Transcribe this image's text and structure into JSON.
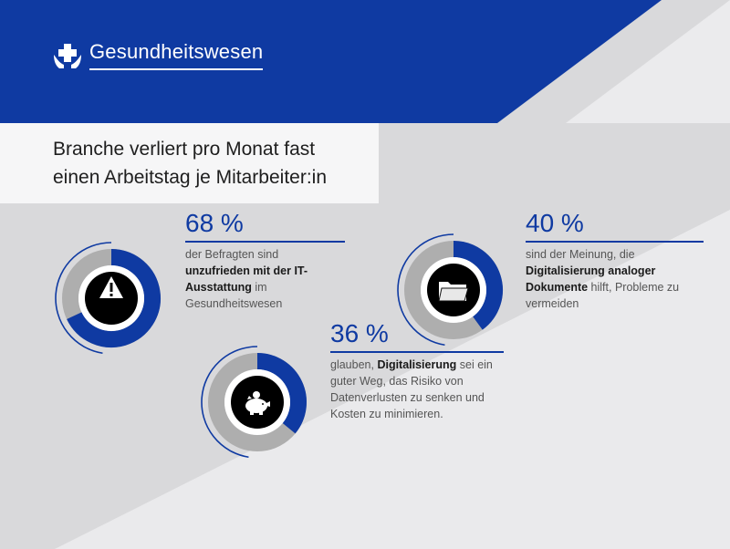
{
  "header": {
    "title": "Gesundheitswesen",
    "logo_icon": "hands-cross-icon"
  },
  "headline": {
    "line1": "Branche verliert pro Monat fast",
    "line2": "einen Arbeitstag je Mitarbeiter:in"
  },
  "colors": {
    "brand_blue": "#0f3aa2",
    "ring_gray": "#aeaeae",
    "text_dark": "#1e1e1e",
    "bg_light": "#d9d9db"
  },
  "stats": [
    {
      "percent": "68 %",
      "icon": "warning-icon",
      "text": [
        {
          "t": "der Befragten sind ",
          "b": false
        },
        {
          "t": "unzufrieden mit der IT-Ausstattung",
          "b": true
        },
        {
          "t": " im Gesundheitswesen",
          "b": false
        }
      ]
    },
    {
      "percent": "40 %",
      "icon": "folder-icon",
      "text": [
        {
          "t": "sind der Meinung, die ",
          "b": false
        },
        {
          "t": "Digitalisierung analoger Dokumente",
          "b": true
        },
        {
          "t": " hilft, Probleme zu vermeiden",
          "b": false
        }
      ]
    },
    {
      "percent": "36 %",
      "icon": "piggy-bank-icon",
      "text": [
        {
          "t": "glauben, ",
          "b": false
        },
        {
          "t": "Digitalisierung",
          "b": true
        },
        {
          "t": " sei ein guter Weg, das Risiko von Datenverlusten zu senken und Kosten zu minimieren.",
          "b": false
        }
      ]
    }
  ],
  "chart_data": {
    "type": "pie",
    "categories": [
      "IT-Ausstattung unzufrieden",
      "Digitalisierung analoger Dokumente",
      "Digitalisierung senkt Risiko"
    ],
    "values": [
      68,
      40,
      36
    ],
    "unit": "%"
  }
}
